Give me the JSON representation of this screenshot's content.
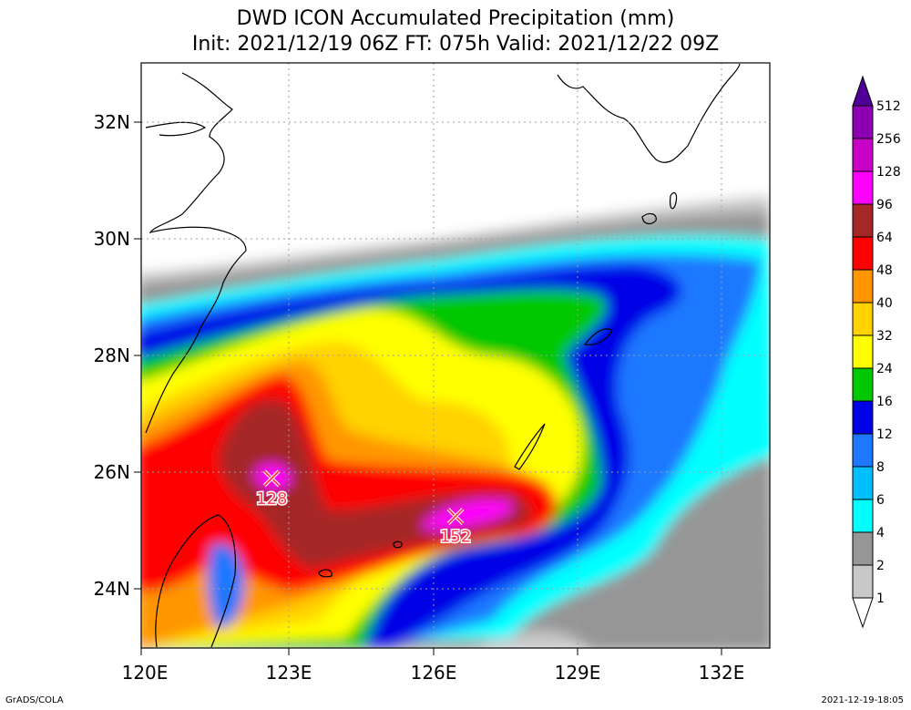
{
  "title": {
    "line1": "DWD ICON Accumulated Precipitation (mm)",
    "line2": "Init: 2021/12/19 06Z  FT: 075h  Valid: 2021/12/22 09Z"
  },
  "axes": {
    "lat_labels": [
      "24N",
      "26N",
      "28N",
      "30N",
      "32N"
    ],
    "lon_labels": [
      "120E",
      "123E",
      "126E",
      "129E",
      "132E"
    ]
  },
  "colorbar": {
    "levels": [
      "1",
      "2",
      "4",
      "6",
      "8",
      "12",
      "16",
      "24",
      "32",
      "40",
      "48",
      "64",
      "96",
      "128",
      "256",
      "512"
    ],
    "colors": [
      "#ffffff",
      "#c8c8c8",
      "#969696",
      "#00ffff",
      "#00bfff",
      "#1e78ff",
      "#0000e6",
      "#00c800",
      "#ffff00",
      "#ffd200",
      "#ff9600",
      "#ff0000",
      "#a52828",
      "#ff00ff",
      "#c800c8",
      "#8c00b4",
      "#500096"
    ]
  },
  "markers": [
    {
      "label": "128",
      "lon": 122.7,
      "lat": 25.9
    },
    {
      "label": "152",
      "lon": 126.5,
      "lat": 25.25
    }
  ],
  "footer": {
    "left": "GrADS/COLA",
    "right": "2021-12-19-18:05"
  }
}
